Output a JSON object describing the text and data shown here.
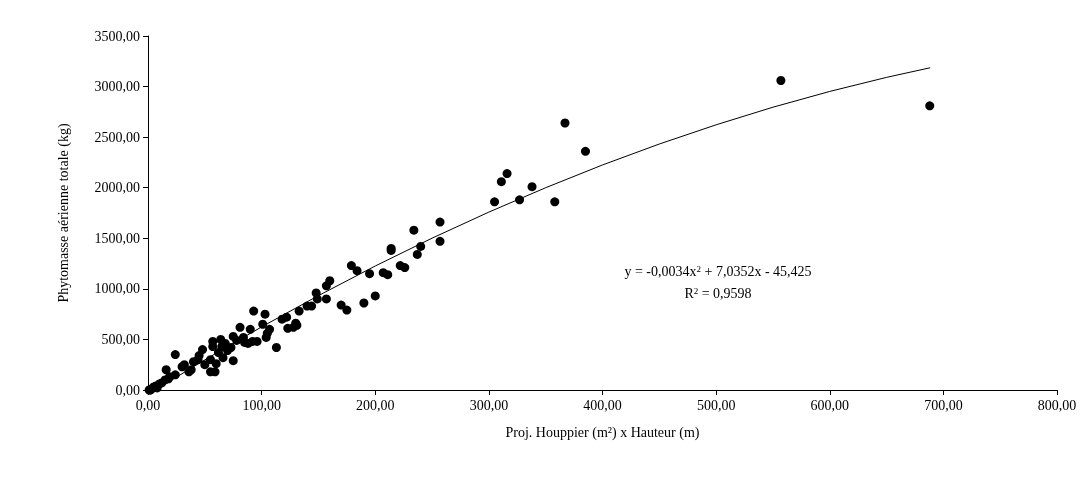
{
  "chart_data": {
    "type": "scatter",
    "xlabel": "Proj. Houppier (m²) x Hauteur (m)",
    "ylabel": "Phytomasse aérienne totale (kg)",
    "xlim": [
      0,
      800
    ],
    "ylim": [
      0,
      3500
    ],
    "xticks": [
      {
        "value": 0,
        "label": "0,00"
      },
      {
        "value": 100,
        "label": "100,00"
      },
      {
        "value": 200,
        "label": "200,00"
      },
      {
        "value": 300,
        "label": "300,00"
      },
      {
        "value": 400,
        "label": "400,00"
      },
      {
        "value": 500,
        "label": "500,00"
      },
      {
        "value": 600,
        "label": "600,00"
      },
      {
        "value": 700,
        "label": "700,00"
      },
      {
        "value": 800,
        "label": "800,00"
      }
    ],
    "yticks": [
      {
        "value": 0,
        "label": "0,00"
      },
      {
        "value": 500,
        "label": "500,00"
      },
      {
        "value": 1000,
        "label": "1000,00"
      },
      {
        "value": 1500,
        "label": "1500,00"
      },
      {
        "value": 2000,
        "label": "2000,00"
      },
      {
        "value": 2500,
        "label": "2500,00"
      },
      {
        "value": 3000,
        "label": "3000,00"
      },
      {
        "value": 3500,
        "label": "3500,00"
      }
    ],
    "grid": false,
    "marker": "circle",
    "annotations": [
      "y = -0,0034x$^{2}$ + 7,0352x - 45,425",
      "R$^{2}$ = 0,9598"
    ],
    "series": [
      {
        "color": "#000000",
        "x": [
          557,
          688,
          367,
          385,
          316,
          311,
          338,
          327,
          305,
          358,
          257,
          234,
          257,
          240,
          237,
          214,
          214,
          179,
          184,
          160,
          157,
          195,
          207,
          211,
          222,
          226,
          157,
          148,
          149,
          144,
          140,
          170,
          175,
          190,
          200,
          133,
          130,
          131,
          123,
          122,
          118,
          128,
          93,
          103,
          101,
          104,
          105,
          107,
          113,
          90,
          88,
          92,
          96,
          81,
          75,
          73,
          75,
          64,
          68,
          62,
          66,
          57,
          57,
          55,
          55,
          59,
          50,
          48,
          44,
          40,
          38,
          36,
          32,
          30,
          24,
          24,
          19,
          16,
          15,
          10,
          7,
          5,
          3,
          1,
          2,
          8,
          12,
          18,
          70,
          78,
          85,
          84,
          45,
          60,
          65
        ],
        "values": [
          3060,
          2810,
          2640,
          2360,
          2140,
          2060,
          2010,
          1880,
          1860,
          1860,
          1660,
          1580,
          1470,
          1420,
          1340,
          1400,
          1380,
          1230,
          1180,
          1080,
          1030,
          1150,
          1160,
          1140,
          1230,
          1210,
          900,
          960,
          900,
          830,
          830,
          840,
          790,
          860,
          930,
          780,
          660,
          640,
          610,
          720,
          700,
          620,
          780,
          750,
          650,
          520,
          560,
          600,
          420,
          600,
          460,
          480,
          480,
          620,
          530,
          420,
          290,
          500,
          460,
          370,
          320,
          480,
          430,
          300,
          180,
          180,
          250,
          400,
          300,
          280,
          200,
          180,
          250,
          230,
          350,
          150,
          130,
          200,
          100,
          60,
          40,
          30,
          10,
          0,
          0,
          20,
          70,
          110,
          390,
          490,
          470,
          520,
          340,
          260,
          430
        ]
      },
      {
        "type": "line",
        "color": "#000000",
        "marker": "none",
        "line_style": "solid",
        "x": [
          10,
          50,
          100,
          150,
          200,
          250,
          300,
          350,
          400,
          450,
          500,
          550,
          600,
          650,
          688
        ],
        "values": [
          25,
          298,
          624,
          933,
          1226,
          1501,
          1759,
          2000,
          2225,
          2432,
          2622,
          2796,
          2952,
          3091,
          3185
        ]
      }
    ]
  }
}
